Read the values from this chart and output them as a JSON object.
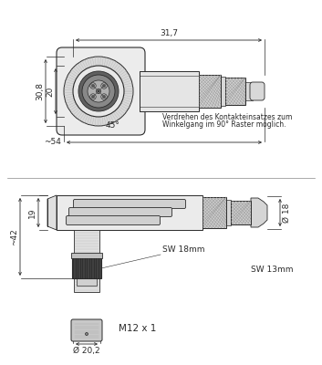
{
  "bg_color": "#ffffff",
  "lc": "#2a2a2a",
  "dim_color": "#2a2a2a",
  "annotations": {
    "dim_308": "30,8",
    "dim_317": "31,7",
    "dim_20": "20",
    "dim_45": "45°",
    "dim_54": "~54",
    "dim_19": "19",
    "dim_42": "~42",
    "dim_18": "Ø 18",
    "sw18": "SW 18mm",
    "sw13": "SW 13mm",
    "m12": "M12 x 1",
    "dim_202": "Ø 20,2",
    "note_line1": "Verdrehen des Kontakteinsatzes zum",
    "note_line2": "Winkelgang im 90° Raster möglich."
  }
}
